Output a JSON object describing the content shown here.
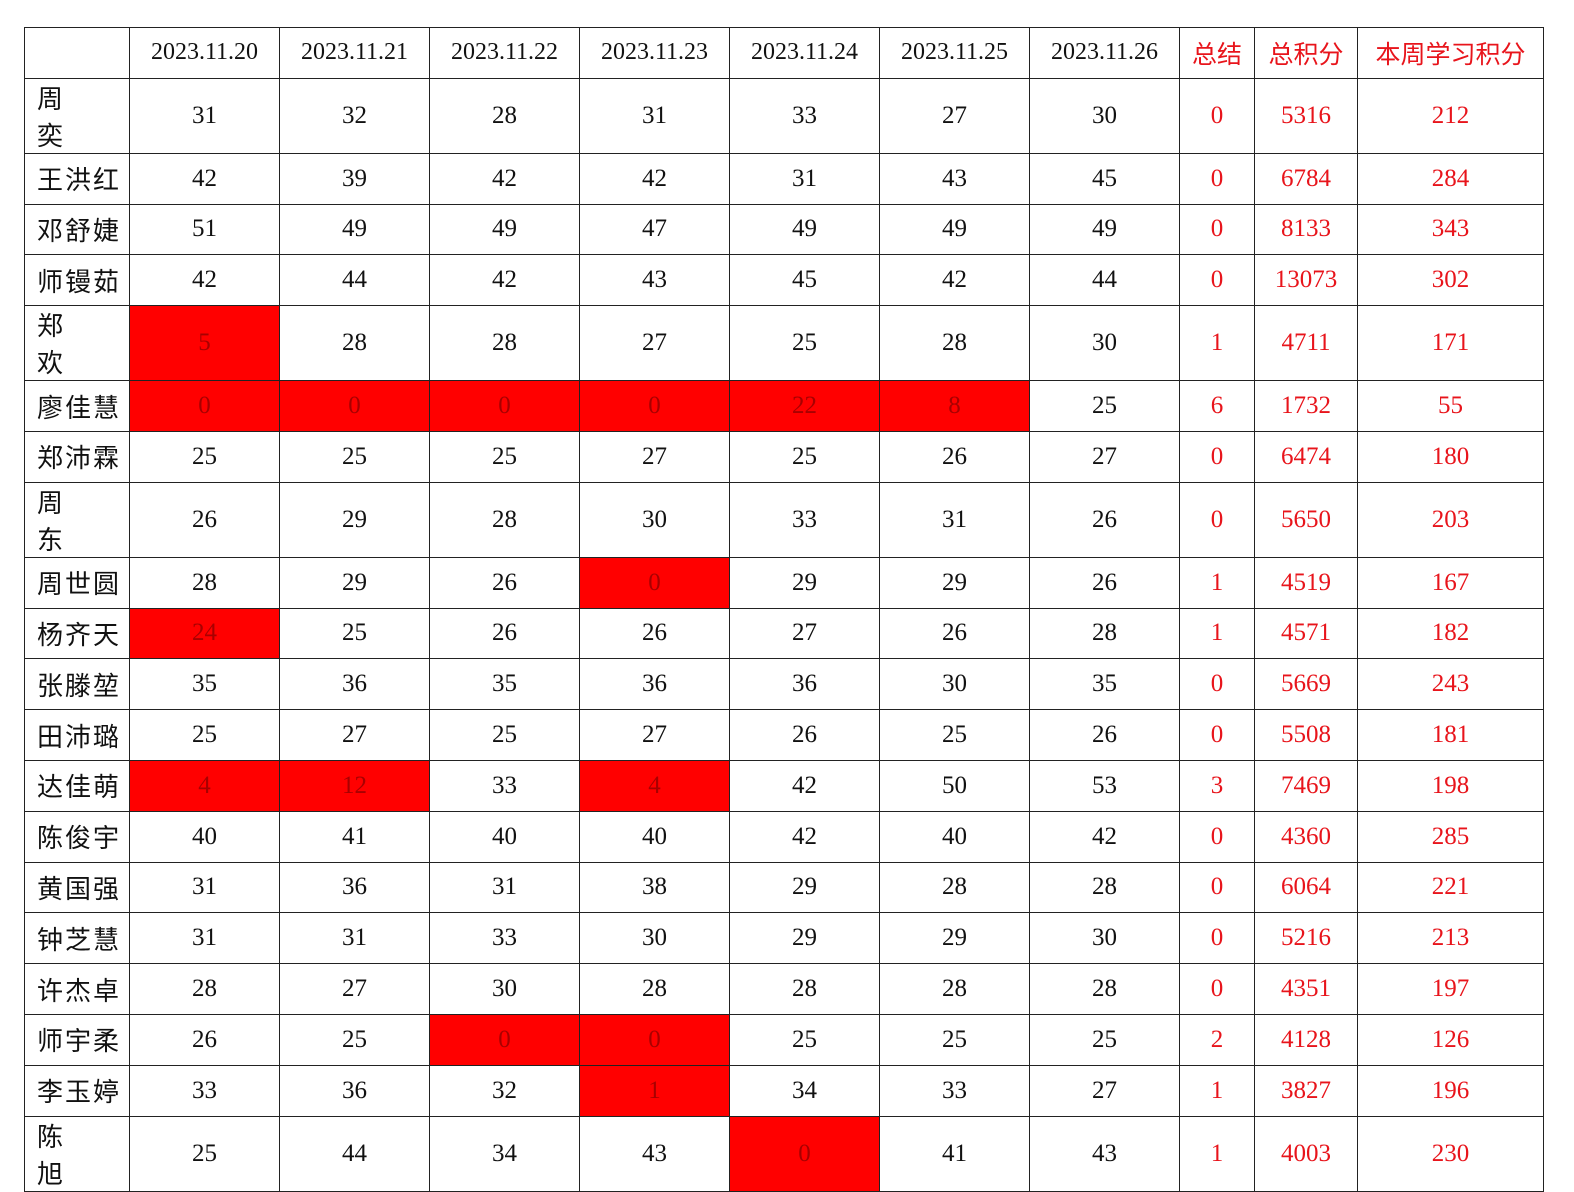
{
  "header": {
    "corner": "",
    "dates": [
      "2023.11.20",
      "2023.11.21",
      "2023.11.22",
      "2023.11.23",
      "2023.11.24",
      "2023.11.25",
      "2023.11.26"
    ],
    "summary": "总结",
    "total_points": "总积分",
    "week_points": "本周学习积分"
  },
  "colors": {
    "highlight_fill": "#ff0000",
    "summary_text": "#e8141b"
  },
  "rows": [
    {
      "name": "周　　奕",
      "daily": [
        "31",
        "32",
        "28",
        "31",
        "33",
        "27",
        "30"
      ],
      "summary": "0",
      "total": "5316",
      "week": "212",
      "highlighted": []
    },
    {
      "name": "王洪红",
      "daily": [
        "42",
        "39",
        "42",
        "42",
        "31",
        "43",
        "45"
      ],
      "summary": "0",
      "total": "6784",
      "week": "284",
      "highlighted": []
    },
    {
      "name": "邓舒婕",
      "daily": [
        "51",
        "49",
        "49",
        "47",
        "49",
        "49",
        "49"
      ],
      "summary": "0",
      "total": "8133",
      "week": "343",
      "highlighted": []
    },
    {
      "name": "师镘茹",
      "daily": [
        "42",
        "44",
        "42",
        "43",
        "45",
        "42",
        "44"
      ],
      "summary": "0",
      "total": "13073",
      "week": "302",
      "highlighted": []
    },
    {
      "name": "郑　　欢",
      "daily": [
        "5",
        "28",
        "28",
        "27",
        "25",
        "28",
        "30"
      ],
      "summary": "1",
      "total": "4711",
      "week": "171",
      "highlighted": [
        0
      ]
    },
    {
      "name": "廖佳慧",
      "daily": [
        "0",
        "0",
        "0",
        "0",
        "22",
        "8",
        "25"
      ],
      "summary": "6",
      "total": "1732",
      "week": "55",
      "highlighted": [
        0,
        1,
        2,
        3,
        4,
        5
      ]
    },
    {
      "name": "郑沛霖",
      "daily": [
        "25",
        "25",
        "25",
        "27",
        "25",
        "26",
        "27"
      ],
      "summary": "0",
      "total": "6474",
      "week": "180",
      "highlighted": []
    },
    {
      "name": "周　　东",
      "daily": [
        "26",
        "29",
        "28",
        "30",
        "33",
        "31",
        "26"
      ],
      "summary": "0",
      "total": "5650",
      "week": "203",
      "highlighted": []
    },
    {
      "name": "周世圆",
      "daily": [
        "28",
        "29",
        "26",
        "0",
        "29",
        "29",
        "26"
      ],
      "summary": "1",
      "total": "4519",
      "week": "167",
      "highlighted": [
        3
      ]
    },
    {
      "name": "杨齐天",
      "daily": [
        "24",
        "25",
        "26",
        "26",
        "27",
        "26",
        "28"
      ],
      "summary": "1",
      "total": "4571",
      "week": "182",
      "highlighted": [
        0
      ]
    },
    {
      "name": "张滕堃",
      "daily": [
        "35",
        "36",
        "35",
        "36",
        "36",
        "30",
        "35"
      ],
      "summary": "0",
      "total": "5669",
      "week": "243",
      "highlighted": []
    },
    {
      "name": "田沛璐",
      "daily": [
        "25",
        "27",
        "25",
        "27",
        "26",
        "25",
        "26"
      ],
      "summary": "0",
      "total": "5508",
      "week": "181",
      "highlighted": []
    },
    {
      "name": "达佳萌",
      "daily": [
        "4",
        "12",
        "33",
        "4",
        "42",
        "50",
        "53"
      ],
      "summary": "3",
      "total": "7469",
      "week": "198",
      "highlighted": [
        0,
        1,
        3
      ]
    },
    {
      "name": "陈俊宇",
      "daily": [
        "40",
        "41",
        "40",
        "40",
        "42",
        "40",
        "42"
      ],
      "summary": "0",
      "total": "4360",
      "week": "285",
      "highlighted": []
    },
    {
      "name": "黄国强",
      "daily": [
        "31",
        "36",
        "31",
        "38",
        "29",
        "28",
        "28"
      ],
      "summary": "0",
      "total": "6064",
      "week": "221",
      "highlighted": []
    },
    {
      "name": "钟芝慧",
      "daily": [
        "31",
        "31",
        "33",
        "30",
        "29",
        "29",
        "30"
      ],
      "summary": "0",
      "total": "5216",
      "week": "213",
      "highlighted": []
    },
    {
      "name": "许杰卓",
      "daily": [
        "28",
        "27",
        "30",
        "28",
        "28",
        "28",
        "28"
      ],
      "summary": "0",
      "total": "4351",
      "week": "197",
      "highlighted": []
    },
    {
      "name": "师宇柔",
      "daily": [
        "26",
        "25",
        "0",
        "0",
        "25",
        "25",
        "25"
      ],
      "summary": "2",
      "total": "4128",
      "week": "126",
      "highlighted": [
        2,
        3
      ]
    },
    {
      "name": "李玉婷",
      "daily": [
        "33",
        "36",
        "32",
        "1",
        "34",
        "33",
        "27"
      ],
      "summary": "1",
      "total": "3827",
      "week": "196",
      "highlighted": [
        3
      ]
    },
    {
      "name": "陈　　旭",
      "daily": [
        "25",
        "44",
        "34",
        "43",
        "0",
        "41",
        "43"
      ],
      "summary": "1",
      "total": "4003",
      "week": "230",
      "highlighted": [
        4
      ]
    }
  ]
}
